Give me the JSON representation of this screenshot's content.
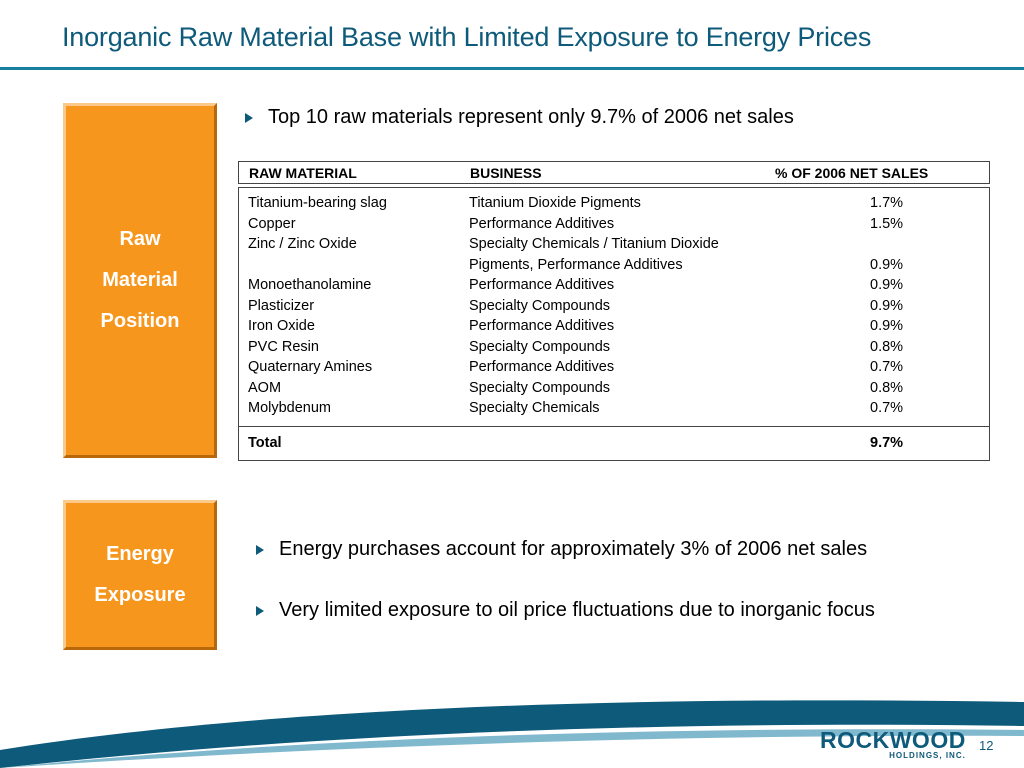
{
  "title": "Inorganic Raw Material Base with Limited Exposure to Energy Prices",
  "raw_box": [
    "Raw",
    "Material",
    "Position"
  ],
  "energy_box": [
    "Energy",
    "Exposure"
  ],
  "bullets": {
    "top": "Top 10 raw materials represent only 9.7% of 2006 net sales",
    "energy1": "Energy purchases account for approximately 3% of 2006 net sales",
    "energy2": "Very limited exposure to oil price fluctuations due to inorganic focus"
  },
  "table": {
    "headers": [
      "RAW MATERIAL",
      "BUSINESS",
      "% OF 2006 NET SALES"
    ],
    "rows": [
      [
        "Titanium-bearing slag",
        "Titanium Dioxide Pigments",
        "1.7%"
      ],
      [
        "Copper",
        "Performance Additives",
        "1.5%"
      ],
      [
        "Zinc / Zinc Oxide",
        "Specialty Chemicals / Titanium Dioxide",
        ""
      ],
      [
        "",
        "Pigments, Performance Additives",
        "0.9%"
      ],
      [
        "Monoethanolamine",
        "Performance Additives",
        "0.9%"
      ],
      [
        "Plasticizer",
        "Specialty Compounds",
        "0.9%"
      ],
      [
        "Iron Oxide",
        "Performance Additives",
        "0.9%"
      ],
      [
        "PVC Resin",
        "Specialty Compounds",
        "0.8%"
      ],
      [
        "Quaternary Amines",
        "Performance Additives",
        "0.7%"
      ],
      [
        "AOM",
        "Specialty Compounds",
        "0.8%"
      ],
      [
        "Molybdenum",
        "Specialty Chemicals",
        "0.7%"
      ]
    ],
    "total": [
      "Total",
      "9.7%"
    ]
  },
  "logo": {
    "main": "ROCKWOOD",
    "sub": "HOLDINGS, INC."
  },
  "page_number": "12",
  "colors": {
    "accent": "#0e5a7a",
    "orange": "#f7961d"
  }
}
